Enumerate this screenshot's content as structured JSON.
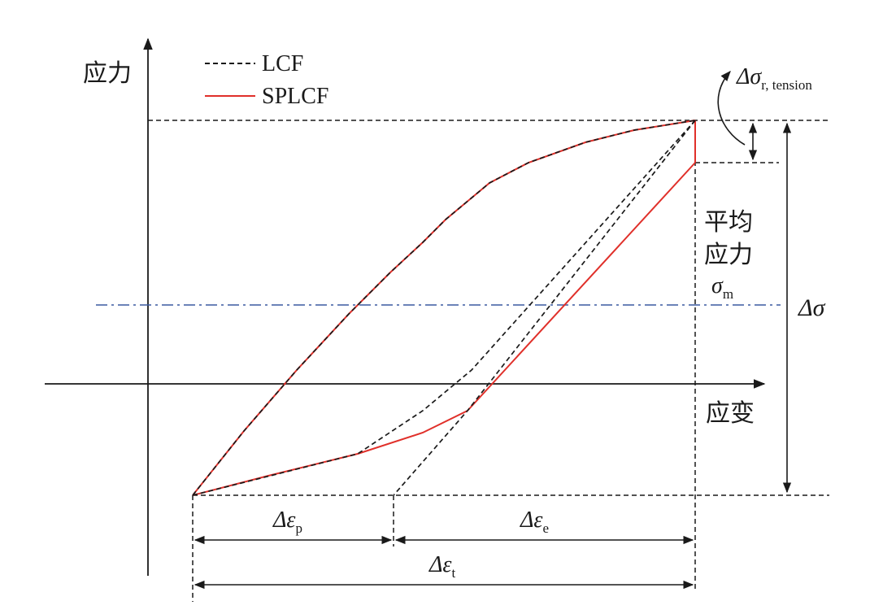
{
  "axes": {
    "y_label": "应力",
    "x_label": "应变"
  },
  "legend": {
    "items": [
      {
        "label": "LCF",
        "style": "dashed",
        "color": "#1a1a1a"
      },
      {
        "label": "SPLCF",
        "style": "solid",
        "color": "#e0302a"
      }
    ]
  },
  "annotations": {
    "mean_stress_line1": "平均",
    "mean_stress_line2": "应力",
    "mean_stress_symbol": "σ",
    "mean_stress_sub": "m",
    "stress_range": "Δσ",
    "relaxation_symbol": "Δσ",
    "relaxation_sub": "r, tension",
    "plastic_strain": "Δε",
    "plastic_sub": "p",
    "elastic_strain": "Δε",
    "elastic_sub": "e",
    "total_strain": "Δε",
    "total_sub": "t"
  },
  "colors": {
    "splcf": "#e0302a",
    "lcf": "#1a1a1a",
    "mean_line": "#3a5aa0",
    "axis": "#1a1a1a"
  }
}
